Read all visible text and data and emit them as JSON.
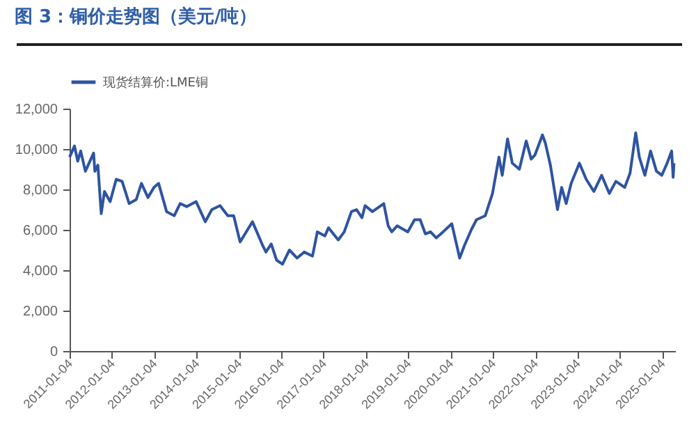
{
  "chart_data": {
    "type": "line",
    "title": "图 3：铜价走势图（美元/吨）",
    "x": [
      "2011-01-04",
      "2011-02-15",
      "2011-03-15",
      "2011-04-10",
      "2011-05-20",
      "2011-07-30",
      "2011-08-10",
      "2011-09-05",
      "2011-10-04",
      "2011-11-01",
      "2011-12-20",
      "2012-02-10",
      "2012-04-01",
      "2012-06-01",
      "2012-08-01",
      "2012-09-15",
      "2012-11-10",
      "2013-01-01",
      "2013-02-10",
      "2013-04-20",
      "2013-06-25",
      "2013-08-15",
      "2013-10-10",
      "2013-12-30",
      "2014-03-20",
      "2014-05-15",
      "2014-07-25",
      "2014-09-30",
      "2014-11-20",
      "2015-01-14",
      "2015-02-15",
      "2015-05-01",
      "2015-07-30",
      "2015-08-25",
      "2015-10-10",
      "2015-11-25",
      "2016-01-15",
      "2016-03-15",
      "2016-05-20",
      "2016-07-20",
      "2016-09-30",
      "2016-11-11",
      "2017-01-15",
      "2017-02-15",
      "2017-05-10",
      "2017-07-01",
      "2017-09-01",
      "2017-10-15",
      "2017-12-01",
      "2017-12-28",
      "2018-03-01",
      "2018-06-07",
      "2018-07-15",
      "2018-08-15",
      "2018-10-01",
      "2018-12-31",
      "2019-02-28",
      "2019-04-17",
      "2019-06-01",
      "2019-07-15",
      "2019-09-03",
      "2019-11-01",
      "2020-01-15",
      "2020-03-23",
      "2020-05-01",
      "2020-07-01",
      "2020-08-15",
      "2020-10-30",
      "2020-12-31",
      "2021-02-25",
      "2021-03-25",
      "2021-05-10",
      "2021-06-20",
      "2021-08-20",
      "2021-10-18",
      "2021-11-30",
      "2022-01-01",
      "2022-03-07",
      "2022-04-01",
      "2022-05-15",
      "2022-07-15",
      "2022-08-20",
      "2022-09-28",
      "2022-11-10",
      "2023-01-20",
      "2023-03-20",
      "2023-05-25",
      "2023-07-31",
      "2023-10-05",
      "2023-12-01",
      "2024-02-15",
      "2024-04-01",
      "2024-05-20",
      "2024-06-20",
      "2024-08-07",
      "2024-09-25",
      "2024-11-15",
      "2024-12-31",
      "2025-02-15",
      "2025-03-26",
      "2025-04-08",
      "2025-04-15"
    ],
    "series": [
      {
        "name": "现货结算价:LME铜",
        "color": "#2e54a1",
        "values": [
          9600,
          10150,
          9400,
          9900,
          8900,
          9800,
          8900,
          9200,
          6800,
          7900,
          7400,
          8500,
          8400,
          7300,
          7500,
          8300,
          7600,
          8100,
          8300,
          6900,
          6700,
          7300,
          7150,
          7400,
          6400,
          7000,
          7200,
          6700,
          6700,
          5400,
          5700,
          6400,
          5200,
          4900,
          5300,
          4500,
          4300,
          5000,
          4600,
          4900,
          4700,
          5900,
          5700,
          6100,
          5500,
          5900,
          6900,
          7000,
          6600,
          7200,
          6900,
          7300,
          6200,
          5900,
          6200,
          5900,
          6500,
          6500,
          5800,
          5900,
          5600,
          5900,
          6300,
          4600,
          5200,
          6000,
          6500,
          6700,
          7800,
          9600,
          8700,
          10500,
          9300,
          9000,
          10400,
          9500,
          9700,
          10700,
          10300,
          9200,
          7000,
          8100,
          7300,
          8300,
          9300,
          8500,
          7900,
          8700,
          7800,
          8400,
          8100,
          8800,
          10800,
          9600,
          8700,
          9900,
          8900,
          8700,
          9300,
          9900,
          8600,
          9300
        ]
      }
    ],
    "xlim": [
      "2011-01-04",
      "2025-04-25"
    ],
    "xticks": [
      "2011-01-04",
      "2012-01-04",
      "2013-01-04",
      "2014-01-04",
      "2015-01-04",
      "2016-01-04",
      "2017-01-04",
      "2018-01-04",
      "2019-01-04",
      "2020-01-04",
      "2021-01-04",
      "2022-01-04",
      "2023-01-04",
      "2024-01-04",
      "2025-01-04"
    ],
    "ylim": [
      0,
      12000
    ],
    "yticks": [
      0,
      {
        "value": 2000,
        "label": "2,000"
      },
      {
        "value": 4000,
        "label": "4,000"
      },
      {
        "value": 6000,
        "label": "6,000"
      },
      {
        "value": 8000,
        "label": "8,000"
      },
      {
        "value": 10000,
        "label": "10,000"
      },
      {
        "value": 12000,
        "label": "12,000"
      }
    ],
    "grid": false,
    "legend": "top",
    "marker": "none",
    "line_style": "solid"
  }
}
